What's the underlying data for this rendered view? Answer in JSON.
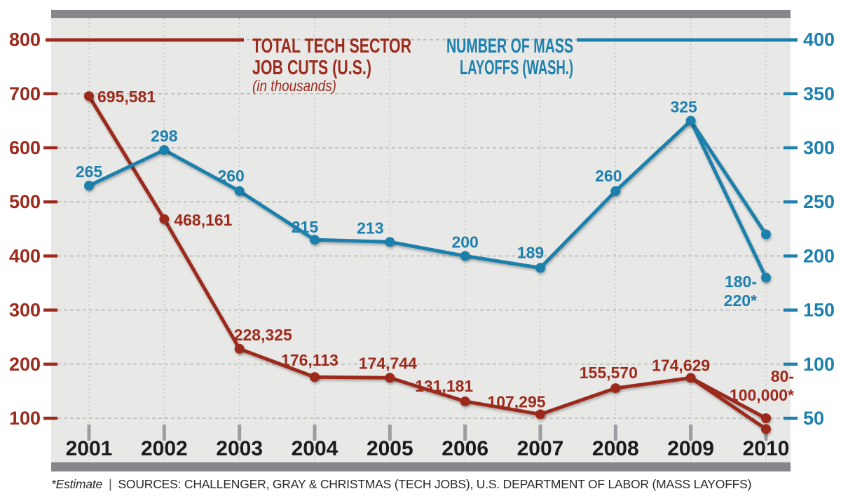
{
  "chart": {
    "frame_color": "#85878a",
    "plot_bg": "#e8e8e6",
    "hgrid_color": "#bdbdba",
    "vgrid_color": "#c6c6c4",
    "year_tick_color": "#9b9da0",
    "year_label_color": "#1b1b1b"
  },
  "legend": {
    "left": {
      "line1": "TOTAL TECH SECTOR",
      "line2": "JOB CUTS (U.S.)",
      "sub": "(in thousands)",
      "color": "#9c2b1d"
    },
    "right": {
      "line1": "NUMBER OF MASS",
      "line2": "LAYOFFS (WASH.)",
      "color": "#1e80ad"
    }
  },
  "chart_data": {
    "type": "line",
    "categories": [
      "2001",
      "2002",
      "2003",
      "2004",
      "2005",
      "2006",
      "2007",
      "2008",
      "2009",
      "2010"
    ],
    "left_axis": {
      "label": "TOTAL TECH SECTOR JOB CUTS (U.S.), in thousands",
      "ticks": [
        800,
        700,
        600,
        500,
        400,
        300,
        200,
        100
      ],
      "range": [
        100,
        800
      ],
      "color": "#9c2b1d"
    },
    "right_axis": {
      "label": "NUMBER OF MASS LAYOFFS (WASH.)",
      "ticks": [
        400,
        350,
        300,
        250,
        200,
        150,
        100,
        50
      ],
      "range": [
        50,
        400
      ],
      "color": "#1e80ad"
    },
    "grid": true,
    "legend_position": "top",
    "series": [
      {
        "name": "TOTAL TECH SECTOR JOB CUTS (U.S.)",
        "unit": "in thousands",
        "axis": "left",
        "color": "#9c2b1d",
        "values": [
          695.581,
          468.161,
          228.325,
          176.113,
          174.744,
          131.181,
          107.295,
          155.57,
          174.629,
          [
            100,
            80
          ]
        ],
        "point_labels": [
          "695,581",
          "468,161",
          "228,325",
          "176,113",
          "174,744",
          "131,181",
          "107,295",
          "155,570",
          "174,629",
          "80-\n100,000*"
        ],
        "final_point_note": "2010 is an estimate range 80,000-100,000"
      },
      {
        "name": "NUMBER OF MASS LAYOFFS (WASH.)",
        "axis": "right",
        "color": "#1e80ad",
        "values": [
          265,
          298,
          260,
          215,
          213,
          200,
          189,
          260,
          325,
          [
            220,
            180
          ]
        ],
        "point_labels": [
          "265",
          "298",
          "260",
          "215",
          "213",
          "200",
          "189",
          "260",
          "325",
          "180-\n220*"
        ],
        "final_point_note": "2010 is an estimate range 180-220"
      }
    ]
  },
  "footer": {
    "estimate": "*Estimate",
    "divider": "|",
    "sources": "SOURCES: CHALLENGER, GRAY & CHRISTMAS (TECH JOBS), U.S. DEPARTMENT OF LABOR (MASS LAYOFFS)"
  }
}
